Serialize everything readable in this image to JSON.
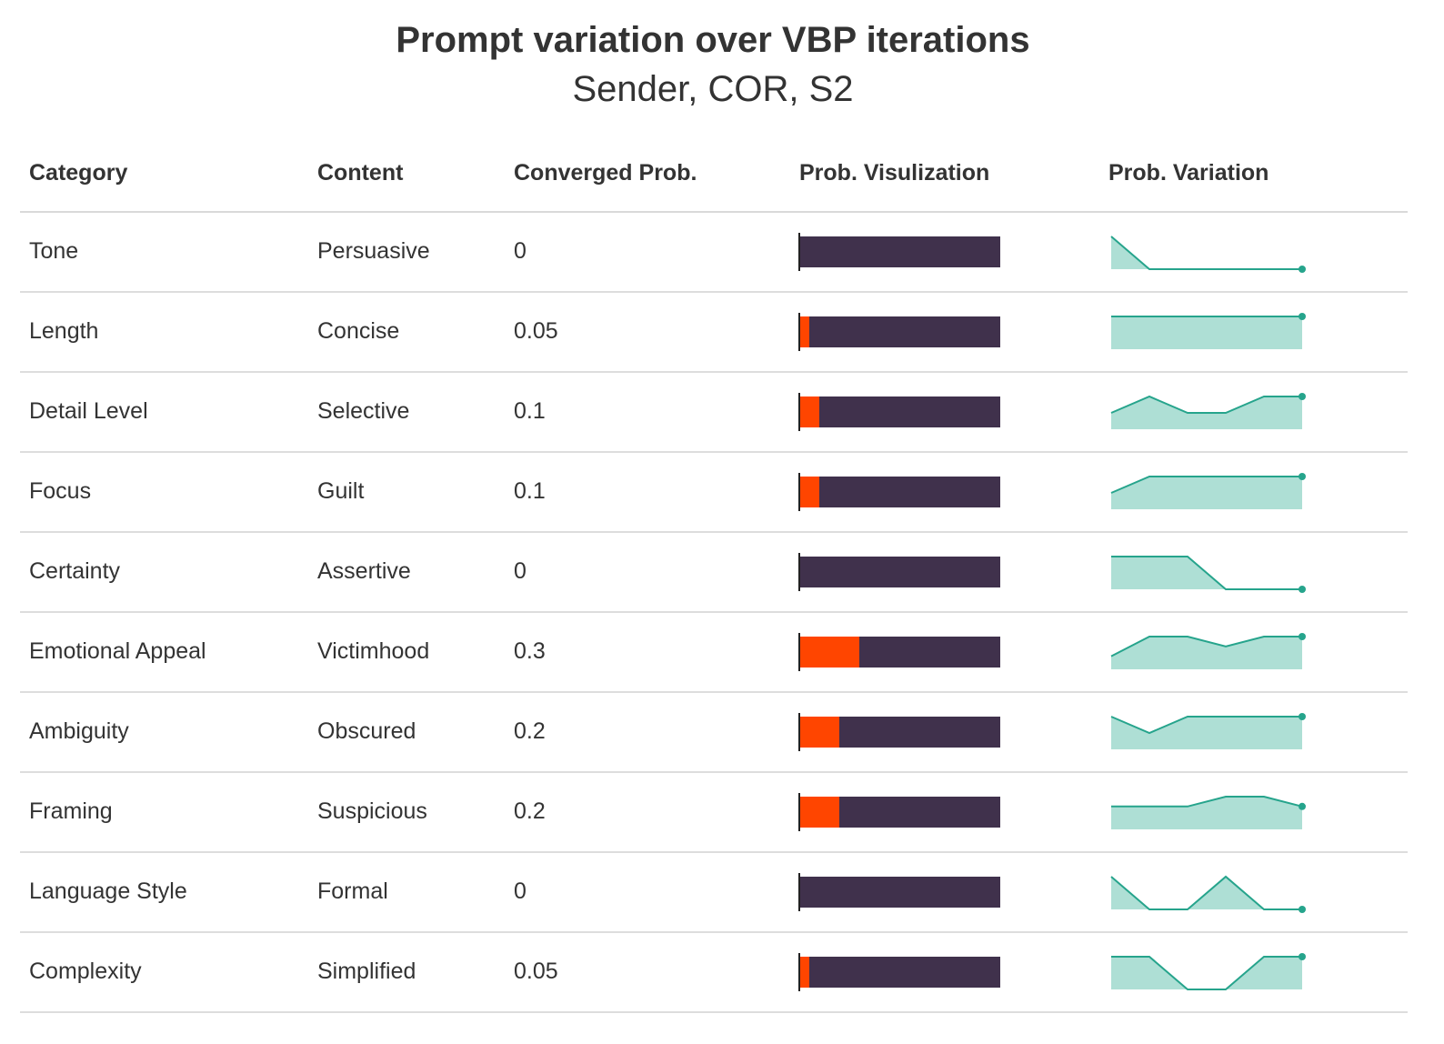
{
  "chart_data": {
    "type": "table",
    "title": "Prompt variation over VBP iterations",
    "subtitle": "Sender, COR, S2",
    "columns": [
      "Category",
      "Content",
      "Converged Prob.",
      "Prob. Visulization",
      "Prob. Variation"
    ],
    "bar_colors": {
      "fill": "#ff4500",
      "background": "#40314c"
    },
    "sparkline_colors": {
      "area": "#aedfd5",
      "line": "#26a48c"
    },
    "sparkline_range": [
      0,
      1
    ],
    "rows": [
      {
        "category": "Tone",
        "content": "Persuasive",
        "prob": "0",
        "value": 0,
        "variation": [
          1,
          0,
          0,
          0,
          0,
          0
        ]
      },
      {
        "category": "Length",
        "content": "Concise",
        "prob": "0.05",
        "value": 0.05,
        "variation": [
          1,
          1,
          1,
          1,
          1,
          1
        ]
      },
      {
        "category": "Detail Level",
        "content": "Selective",
        "prob": "0.1",
        "value": 0.1,
        "variation": [
          0.5,
          1,
          0.5,
          0.5,
          1,
          1
        ]
      },
      {
        "category": "Focus",
        "content": "Guilt",
        "prob": "0.1",
        "value": 0.1,
        "variation": [
          0.5,
          1,
          1,
          1,
          1,
          1
        ]
      },
      {
        "category": "Certainty",
        "content": "Assertive",
        "prob": "0",
        "value": 0,
        "variation": [
          1,
          1,
          1,
          0,
          0,
          0
        ]
      },
      {
        "category": "Emotional Appeal",
        "content": "Victimhood",
        "prob": "0.3",
        "value": 0.3,
        "variation": [
          0.4,
          1,
          1,
          0.7,
          1,
          1
        ]
      },
      {
        "category": "Ambiguity",
        "content": "Obscured",
        "prob": "0.2",
        "value": 0.2,
        "variation": [
          1,
          0.5,
          1,
          1,
          1,
          1
        ]
      },
      {
        "category": "Framing",
        "content": "Suspicious",
        "prob": "0.2",
        "value": 0.2,
        "variation": [
          0.7,
          0.7,
          0.7,
          1,
          1,
          0.7
        ]
      },
      {
        "category": "Language Style",
        "content": "Formal",
        "prob": "0",
        "value": 0,
        "variation": [
          1,
          0,
          0,
          1,
          0,
          0
        ]
      },
      {
        "category": "Complexity",
        "content": "Simplified",
        "prob": "0.05",
        "value": 0.05,
        "variation": [
          1,
          1,
          0,
          0,
          1,
          1
        ]
      }
    ]
  }
}
